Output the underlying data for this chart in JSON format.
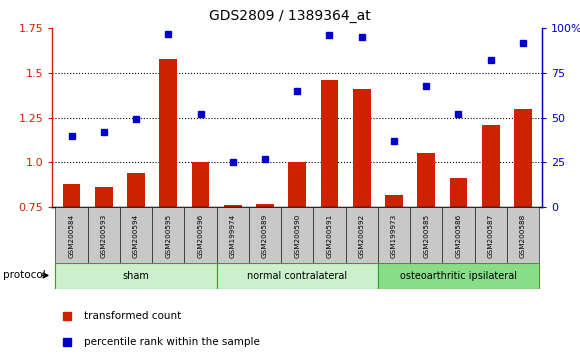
{
  "title": "GDS2809 / 1389364_at",
  "samples": [
    "GSM200584",
    "GSM200593",
    "GSM200594",
    "GSM200595",
    "GSM200596",
    "GSM199974",
    "GSM200589",
    "GSM200590",
    "GSM200591",
    "GSM200592",
    "GSM199973",
    "GSM200585",
    "GSM200586",
    "GSM200587",
    "GSM200588"
  ],
  "red_values": [
    0.88,
    0.86,
    0.94,
    1.58,
    1.0,
    0.76,
    0.77,
    1.0,
    1.46,
    1.41,
    0.82,
    1.05,
    0.91,
    1.21,
    1.3
  ],
  "blue_values": [
    40,
    42,
    49,
    97,
    52,
    25,
    27,
    65,
    96,
    95,
    37,
    68,
    52,
    82,
    92
  ],
  "ylim_left": [
    0.75,
    1.75
  ],
  "ylim_right": [
    0,
    100
  ],
  "yticks_left": [
    0.75,
    1.0,
    1.25,
    1.5,
    1.75
  ],
  "yticks_right": [
    0,
    25,
    50,
    75,
    100
  ],
  "ytick_labels_right": [
    "0",
    "25",
    "50",
    "75",
    "100%"
  ],
  "red_color": "#cc2200",
  "blue_color": "#0000cc",
  "bar_width": 0.55,
  "bg_color": "#ffffff",
  "tick_bg": "#c8c8c8",
  "legend_red": "transformed count",
  "legend_blue": "percentile rank within the sample",
  "protocol_label": "protocol",
  "group_starts": [
    0,
    5,
    10
  ],
  "group_ends": [
    5,
    10,
    15
  ],
  "group_labels": [
    "sham",
    "normal contralateral",
    "osteoarthritic ipsilateral"
  ],
  "group_colors": [
    "#ccf0cc",
    "#ccf0cc",
    "#88dd88"
  ],
  "group_border_color": "#22aa22",
  "dotted_lines": [
    1.0,
    1.25,
    1.5
  ]
}
